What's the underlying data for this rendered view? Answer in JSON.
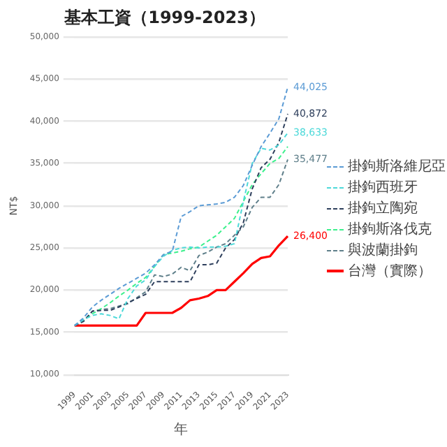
{
  "chart_data": {
    "type": "line",
    "title": "基本工資（1999-2023）",
    "xlabel": "年",
    "ylabel": "NT$",
    "categories": [
      "1999",
      null,
      "2001",
      null,
      "2003",
      null,
      "2005",
      null,
      "2007",
      null,
      "2009",
      null,
      "2011",
      null,
      "2013",
      null,
      "2015",
      null,
      "2017",
      null,
      "2019",
      null,
      "2021",
      null,
      "2023"
    ],
    "series": [
      {
        "name": "掛鉤斯洛維尼亞",
        "color": "#5b9bd5",
        "line_style": "dashed",
        "values": [
          15800,
          16700,
          18000,
          18800,
          19500,
          20200,
          20800,
          21400,
          22000,
          23000,
          24200,
          24600,
          28700,
          29300,
          30000,
          30100,
          30200,
          30400,
          31000,
          32400,
          34800,
          37000,
          38600,
          40300,
          44025
        ],
        "value_labels": [
          null,
          null,
          null,
          null,
          null,
          null,
          null,
          null,
          null,
          null,
          null,
          null,
          null,
          null,
          null,
          null,
          null,
          null,
          null,
          null,
          null,
          null,
          null,
          null,
          "44,025"
        ]
      },
      {
        "name": "掛鉤西班牙",
        "color": "#4dd9d9",
        "line_style": "dashed",
        "values": [
          15800,
          16500,
          17000,
          17200,
          17000,
          16600,
          19000,
          20500,
          21200,
          22800,
          24000,
          24700,
          25000,
          25100,
          25000,
          25100,
          25100,
          25200,
          25500,
          30500,
          35000,
          36800,
          36600,
          37200,
          38633
        ],
        "value_labels": [
          null,
          null,
          null,
          null,
          null,
          null,
          null,
          null,
          null,
          null,
          null,
          null,
          null,
          null,
          null,
          null,
          null,
          null,
          null,
          null,
          null,
          null,
          null,
          null,
          "38,633"
        ]
      },
      {
        "name": "掛鉤立陶宛",
        "color": "#2e3f5c",
        "line_style": "dashed",
        "values": [
          15800,
          16300,
          17500,
          17600,
          17600,
          18000,
          18500,
          19000,
          19500,
          21000,
          21000,
          21000,
          21000,
          21000,
          23000,
          23000,
          23200,
          25000,
          26000,
          28000,
          32000,
          34500,
          35500,
          37500,
          40872
        ],
        "value_labels": [
          null,
          null,
          null,
          null,
          null,
          null,
          null,
          null,
          null,
          null,
          null,
          null,
          null,
          null,
          null,
          null,
          null,
          null,
          null,
          null,
          null,
          null,
          null,
          null,
          "40,872"
        ]
      },
      {
        "name": "掛鉤斯洛伐克",
        "color": "#3cf08c",
        "line_style": "dashed",
        "values": [
          15800,
          16500,
          17200,
          17800,
          18500,
          19300,
          20000,
          20800,
          21500,
          22800,
          24200,
          24400,
          24600,
          24900,
          25100,
          25800,
          26500,
          27500,
          28500,
          30500,
          32500,
          33800,
          35000,
          35600,
          37000
        ]
      },
      {
        "name": "與波蘭掛鉤",
        "color": "#5f7f8a",
        "line_style": "dashed",
        "values": [
          15800,
          16300,
          17500,
          17700,
          17800,
          18100,
          18400,
          19100,
          19800,
          21800,
          21600,
          21900,
          22700,
          22300,
          24100,
          24500,
          25100,
          25500,
          26500,
          27500,
          29800,
          31000,
          31000,
          32500,
          35477
        ],
        "value_labels": [
          null,
          null,
          null,
          null,
          null,
          null,
          null,
          null,
          null,
          null,
          null,
          null,
          null,
          null,
          null,
          null,
          null,
          null,
          null,
          null,
          null,
          null,
          null,
          null,
          "35,477"
        ]
      },
      {
        "name": "台灣（實際）",
        "color": "#ff0000",
        "line_style": "solid",
        "values": [
          15800,
          15800,
          15800,
          15800,
          15800,
          15800,
          15800,
          15800,
          17300,
          17300,
          17300,
          17300,
          17900,
          18800,
          19000,
          19300,
          20000,
          20000,
          21000,
          22000,
          23100,
          23800,
          24000,
          25300,
          26400
        ],
        "value_labels": [
          null,
          null,
          null,
          null,
          null,
          null,
          null,
          null,
          null,
          null,
          null,
          null,
          null,
          null,
          null,
          null,
          null,
          null,
          null,
          null,
          null,
          null,
          null,
          null,
          "26,400"
        ]
      }
    ],
    "ylim": [
      10000,
      50000
    ],
    "yticks": [
      {
        "value": 10000,
        "label": "10,000"
      },
      {
        "value": 15000,
        "label": "15,000"
      },
      {
        "value": 20000,
        "label": "20,000"
      },
      {
        "value": 25000,
        "label": "25,000"
      },
      {
        "value": 30000,
        "label": "30,000"
      },
      {
        "value": 35000,
        "label": "35,000"
      },
      {
        "value": 40000,
        "label": "40,000"
      },
      {
        "value": 45000,
        "label": "45,000"
      },
      {
        "value": 50000,
        "label": "50,000"
      }
    ],
    "grid": "y",
    "legend": "right",
    "marker": "none"
  }
}
